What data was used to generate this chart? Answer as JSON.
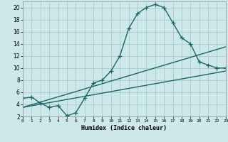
{
  "title": "",
  "xlabel": "Humidex (Indice chaleur)",
  "ylabel": "",
  "background_color": "#cce8e8",
  "grid_color": "#aacccc",
  "line_color": "#1a6666",
  "xlim": [
    0,
    23
  ],
  "ylim": [
    2,
    21
  ],
  "xticks": [
    0,
    1,
    2,
    3,
    4,
    5,
    6,
    7,
    8,
    9,
    10,
    11,
    12,
    13,
    14,
    15,
    16,
    17,
    18,
    19,
    20,
    21,
    22,
    23
  ],
  "yticks": [
    2,
    4,
    6,
    8,
    10,
    12,
    14,
    16,
    18,
    20
  ],
  "line1_x": [
    0,
    1,
    2,
    3,
    4,
    5,
    6,
    7,
    8,
    9,
    10,
    11,
    12,
    13,
    14,
    15,
    16,
    17,
    18,
    19,
    20,
    21,
    22,
    23
  ],
  "line1_y": [
    5.0,
    5.2,
    4.2,
    3.5,
    3.8,
    2.1,
    2.6,
    5.0,
    7.5,
    8.0,
    9.5,
    12.0,
    16.5,
    19.0,
    20.0,
    20.5,
    20.0,
    17.5,
    15.0,
    14.0,
    11.0,
    10.5,
    10.0,
    10.0
  ],
  "line2_x": [
    0,
    23
  ],
  "line2_y": [
    3.5,
    9.5
  ],
  "line3_x": [
    0,
    23
  ],
  "line3_y": [
    3.5,
    13.5
  ],
  "marker": "+",
  "marker_size": 4,
  "linewidth": 1.0
}
